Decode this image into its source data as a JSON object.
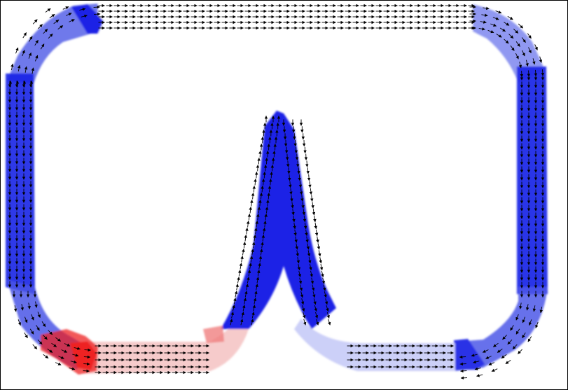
{
  "figure": {
    "type": "vector-field-over-track",
    "background": "#ffffff",
    "frame_color": "#000000",
    "arrow_color": "#000000",
    "track_color": "#1a23e6",
    "track_light_color": "#b7bbf5",
    "highlight_color": "#ee2222",
    "highlight_light_color": "#f7b7b7",
    "regions": [
      {
        "name": "top-straight"
      },
      {
        "name": "right-straight"
      },
      {
        "name": "left-straight"
      },
      {
        "name": "bottom-straight"
      },
      {
        "name": "center-spike"
      },
      {
        "name": "bottom-left-hotspot"
      }
    ]
  }
}
